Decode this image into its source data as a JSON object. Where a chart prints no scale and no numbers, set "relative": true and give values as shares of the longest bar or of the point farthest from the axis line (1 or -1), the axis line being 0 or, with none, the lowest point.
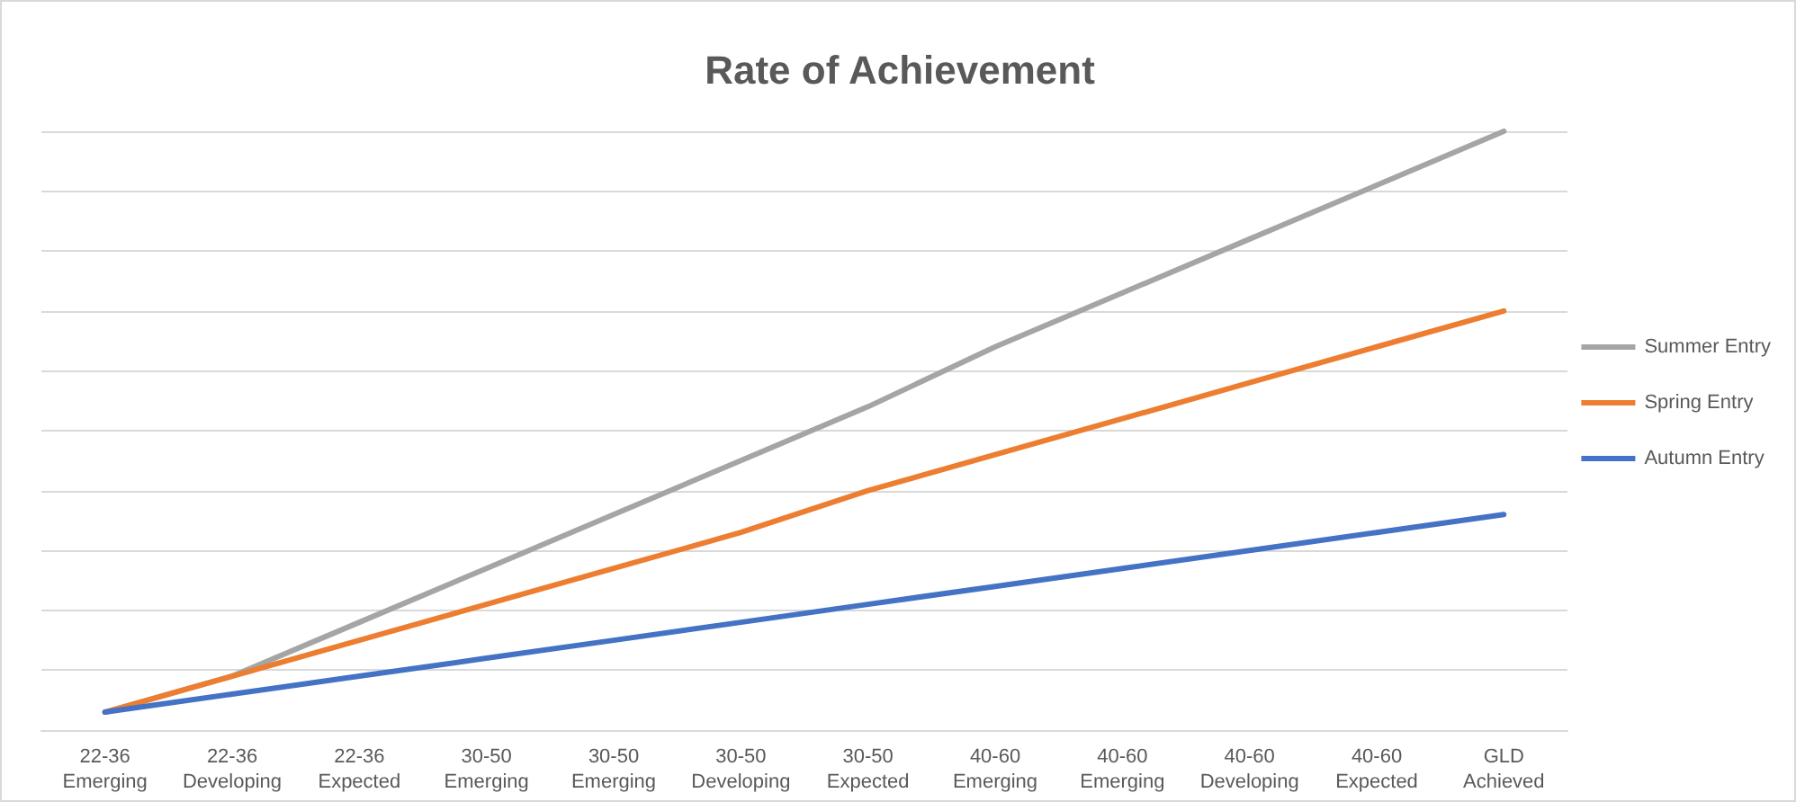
{
  "chart_data": {
    "type": "line",
    "title": "Rate of Achievement",
    "relative": true,
    "grid": "y",
    "legend": "right",
    "marker": "none",
    "line_style": "solid",
    "categories": [
      "22-36\nEmerging",
      "22-36\nDeveloping",
      "22-36\nExpected",
      "30-50\nEmerging",
      "30-50\nEmerging",
      "30-50\nDeveloping",
      "30-50\nExpected",
      "40-60\nEmerging",
      "40-60\nEmerging",
      "40-60\nDeveloping",
      "40-60\nExpected",
      "GLD\nAchieved"
    ],
    "series": [
      {
        "name": "Summer Entry",
        "color": "#a5a5a5",
        "values": [
          0.03,
          0.09,
          0.18,
          0.27,
          0.36,
          0.45,
          0.54,
          0.64,
          0.73,
          0.82,
          0.91,
          1.0
        ]
      },
      {
        "name": "Spring Entry",
        "color": "#ed7d31",
        "values": [
          0.03,
          0.09,
          0.15,
          0.21,
          0.27,
          0.33,
          0.4,
          0.46,
          0.52,
          0.58,
          0.64,
          0.7
        ]
      },
      {
        "name": "Autumn Entry",
        "color": "#4472c4",
        "values": [
          0.03,
          0.06,
          0.09,
          0.12,
          0.15,
          0.18,
          0.21,
          0.24,
          0.27,
          0.3,
          0.33,
          0.36
        ]
      }
    ]
  }
}
